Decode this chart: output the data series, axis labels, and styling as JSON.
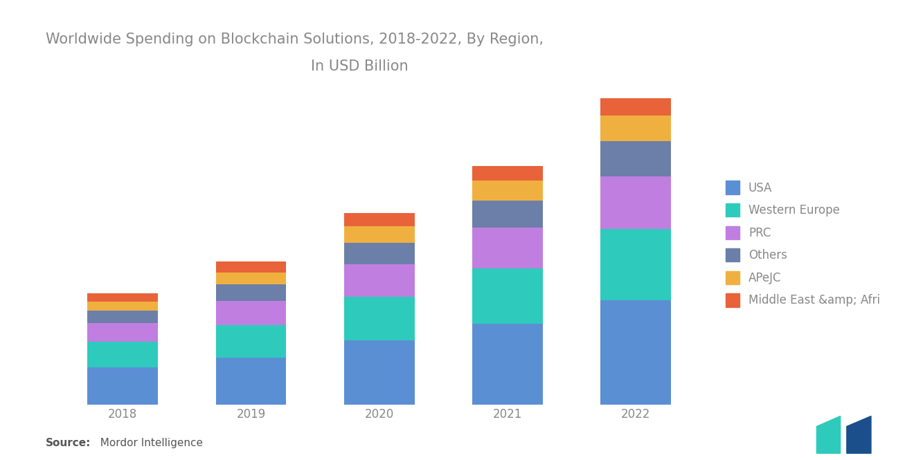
{
  "title_line1": "Worldwide Spending on Blockchain Solutions, 2018-2022, By Region,",
  "title_line2": "In USD Billion",
  "years": [
    "2018",
    "2019",
    "2020",
    "2021",
    "2022"
  ],
  "regions": [
    "USA",
    "Western Europe",
    "PRC",
    "Others",
    "APeJC",
    "Middle East &amp; Afri"
  ],
  "colors": [
    "#5B8FD4",
    "#2ECBBC",
    "#C07FE0",
    "#6B7FA8",
    "#F0B040",
    "#E8623A"
  ],
  "data": {
    "USA": [
      0.55,
      0.7,
      0.95,
      1.2,
      1.55
    ],
    "Western Europe": [
      0.38,
      0.48,
      0.65,
      0.82,
      1.05
    ],
    "PRC": [
      0.28,
      0.36,
      0.48,
      0.6,
      0.78
    ],
    "Others": [
      0.18,
      0.24,
      0.32,
      0.4,
      0.52
    ],
    "APeJC": [
      0.14,
      0.18,
      0.24,
      0.3,
      0.38
    ],
    "Middle East &amp; Afri": [
      0.12,
      0.16,
      0.2,
      0.22,
      0.26
    ]
  },
  "source_bold": "Source:",
  "source_rest": "  Mordor Intelligence",
  "background_color": "#FFFFFF",
  "title_fontsize": 15,
  "tick_fontsize": 12,
  "legend_fontsize": 12,
  "source_fontsize": 11,
  "bar_width": 0.55,
  "title_color": "#888888",
  "tick_color": "#888888",
  "legend_color": "#888888"
}
